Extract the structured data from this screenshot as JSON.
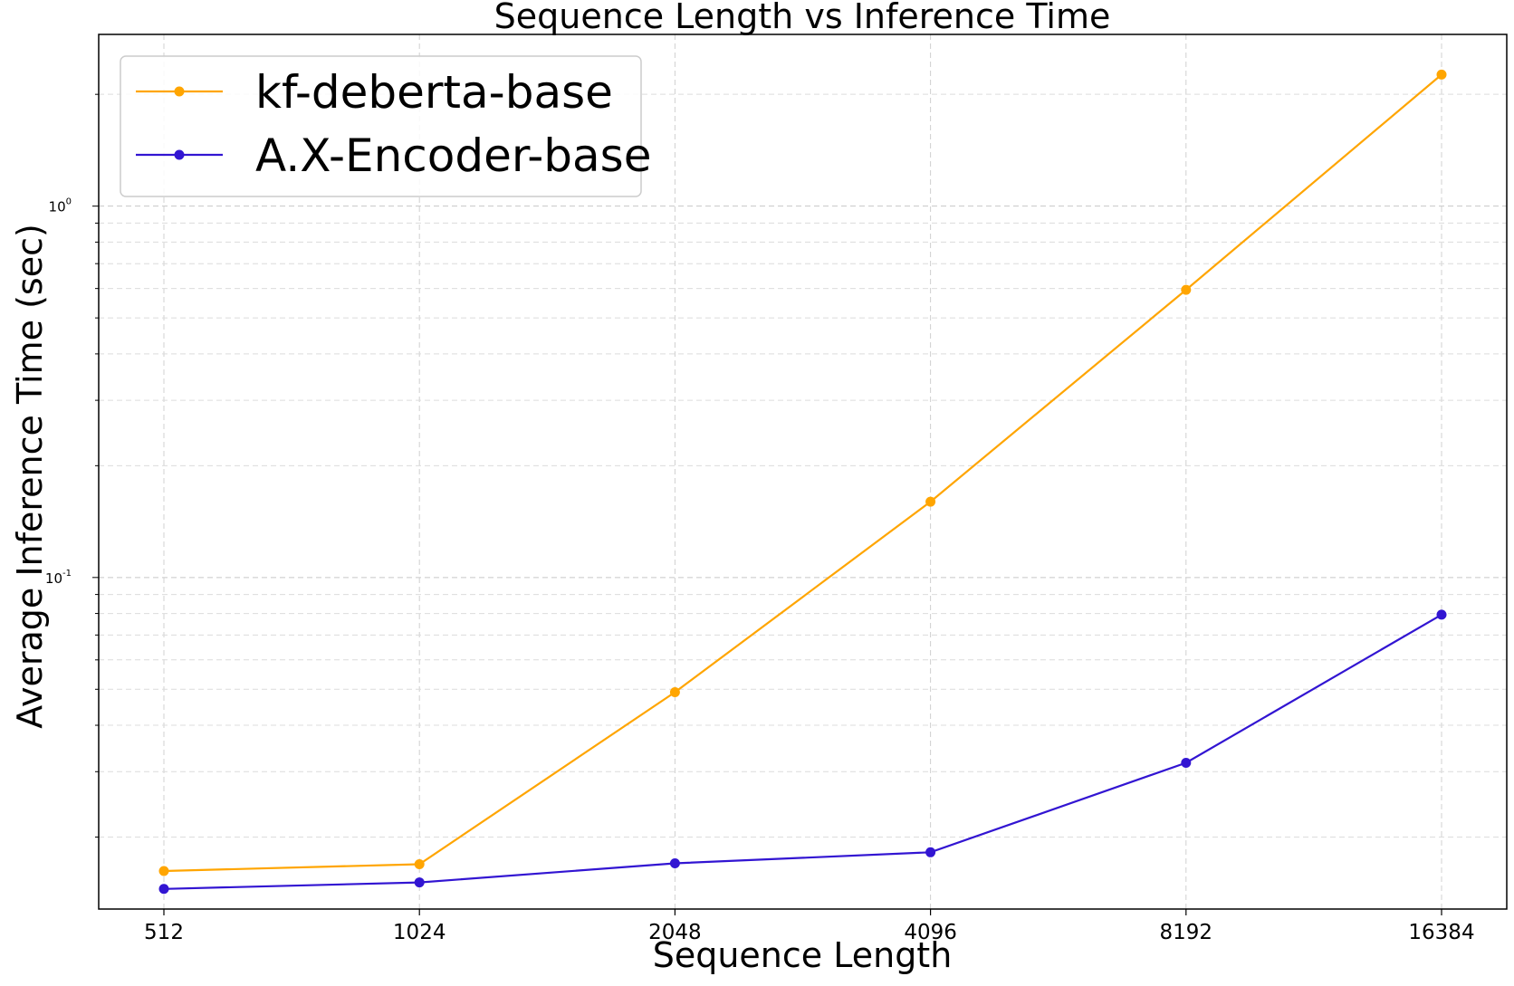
{
  "chart_data": {
    "type": "line",
    "title": "Sequence Length vs Inference Time",
    "xlabel": "Sequence Length",
    "ylabel": "Average Inference Time (sec)",
    "y_scale": "log",
    "ylim": [
      0.0128,
      2.9
    ],
    "x_scale": "categorical-log2",
    "categories": [
      "512",
      "1024",
      "2048",
      "4096",
      "8192",
      "16384"
    ],
    "y_tick_labels": [
      "10^0",
      "10^-1"
    ],
    "y_tick_values": [
      1,
      0.1
    ],
    "grid": true,
    "legend_position": "top-left",
    "series": [
      {
        "name": "kf-deberta-base",
        "color": "#FFA500",
        "values": [
          0.0162,
          0.0169,
          0.0491,
          0.16,
          0.595,
          2.26
        ]
      },
      {
        "name": "A.X-Encoder-base",
        "color": "#3215D2",
        "values": [
          0.0145,
          0.0151,
          0.017,
          0.0182,
          0.0317,
          0.0794
        ]
      }
    ]
  }
}
